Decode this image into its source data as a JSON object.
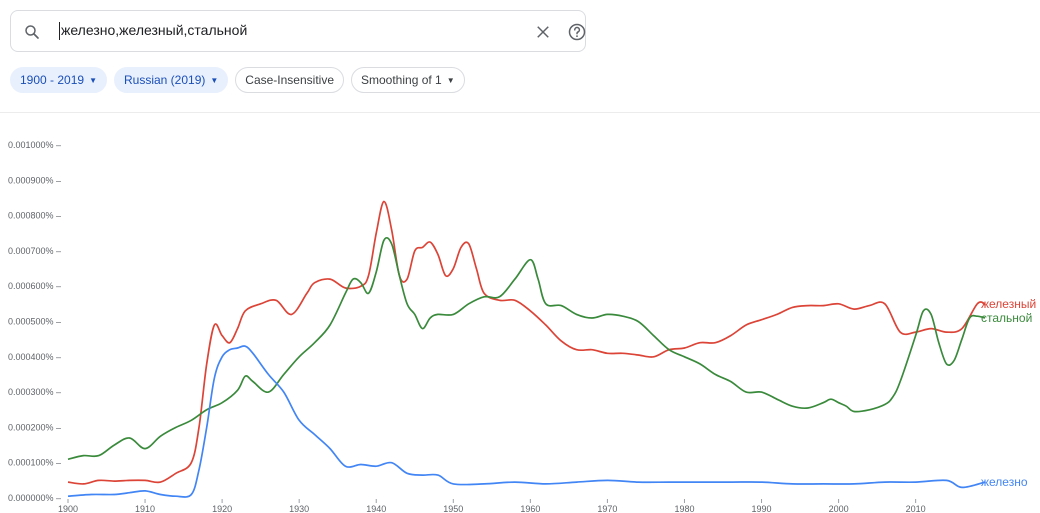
{
  "search": {
    "query": "железно,железный,стальной",
    "icons": {
      "search": "search-icon",
      "clear": "close-icon",
      "help": "help-icon"
    }
  },
  "filters": {
    "year_range": "1900 - 2019",
    "corpus": "Russian (2019)",
    "case": "Case-Insensitive",
    "smoothing": "Smoothing of 1"
  },
  "colors": {
    "железный": "#db4437",
    "стальной": "#3a8a3c",
    "железно": "#4285f4",
    "chip_selected_bg": "#e8f0fe",
    "chip_selected_text": "#1a4fb8"
  },
  "chart_data": {
    "type": "line",
    "title": "",
    "xlabel": "",
    "ylabel": "",
    "xlim": [
      1900,
      2019
    ],
    "ylim": [
      0,
      0.001
    ],
    "y_tick_labels": [
      "0.000000%",
      "0.000100%",
      "0.000200%",
      "0.000300%",
      "0.000400%",
      "0.000500%",
      "0.000600%",
      "0.000700%",
      "0.000800%",
      "0.000900%",
      "0.001000%"
    ],
    "y_tick_values": [
      0,
      0.0001,
      0.0002,
      0.0003,
      0.0004,
      0.0005,
      0.0006,
      0.0007,
      0.0008,
      0.0009,
      0.001
    ],
    "x_tick_labels": [
      "1900",
      "1910",
      "1920",
      "1930",
      "1940",
      "1950",
      "1960",
      "1970",
      "1980",
      "1990",
      "2000",
      "2010"
    ],
    "x_tick_values": [
      1900,
      1910,
      1920,
      1930,
      1940,
      1950,
      1960,
      1970,
      1980,
      1990,
      2000,
      2010
    ],
    "grid": false,
    "legend": "series labels at right end of lines",
    "series": [
      {
        "name": "железный",
        "color": "#db4437",
        "points": [
          [
            1900,
            4.5e-05
          ],
          [
            1902,
            4e-05
          ],
          [
            1904,
            5e-05
          ],
          [
            1906,
            4.8e-05
          ],
          [
            1908,
            5e-05
          ],
          [
            1910,
            5e-05
          ],
          [
            1912,
            4.5e-05
          ],
          [
            1914,
            7e-05
          ],
          [
            1916,
            0.0001
          ],
          [
            1917,
            0.0002
          ],
          [
            1918,
            0.00038
          ],
          [
            1919,
            0.00049
          ],
          [
            1920,
            0.00046
          ],
          [
            1921,
            0.00044
          ],
          [
            1922,
            0.00048
          ],
          [
            1923,
            0.00053
          ],
          [
            1925,
            0.00055
          ],
          [
            1927,
            0.00056
          ],
          [
            1929,
            0.00052
          ],
          [
            1931,
            0.00058
          ],
          [
            1932,
            0.00061
          ],
          [
            1934,
            0.00062
          ],
          [
            1936,
            0.000595
          ],
          [
            1938,
            0.0006
          ],
          [
            1939,
            0.00063
          ],
          [
            1940,
            0.00075
          ],
          [
            1941,
            0.00084
          ],
          [
            1942,
            0.00076
          ],
          [
            1943,
            0.00063
          ],
          [
            1944,
            0.00062
          ],
          [
            1945,
            0.0007
          ],
          [
            1946,
            0.00071
          ],
          [
            1947,
            0.000725
          ],
          [
            1948,
            0.00069
          ],
          [
            1949,
            0.00063
          ],
          [
            1950,
            0.00065
          ],
          [
            1951,
            0.00071
          ],
          [
            1952,
            0.00072
          ],
          [
            1953,
            0.00065
          ],
          [
            1954,
            0.00058
          ],
          [
            1956,
            0.00056
          ],
          [
            1958,
            0.00056
          ],
          [
            1960,
            0.00053
          ],
          [
            1962,
            0.00049
          ],
          [
            1964,
            0.000445
          ],
          [
            1966,
            0.00042
          ],
          [
            1968,
            0.00042
          ],
          [
            1970,
            0.00041
          ],
          [
            1972,
            0.00041
          ],
          [
            1974,
            0.000405
          ],
          [
            1976,
            0.0004
          ],
          [
            1978,
            0.00042
          ],
          [
            1980,
            0.000425
          ],
          [
            1982,
            0.00044
          ],
          [
            1984,
            0.00044
          ],
          [
            1986,
            0.00046
          ],
          [
            1988,
            0.00049
          ],
          [
            1990,
            0.000505
          ],
          [
            1992,
            0.00052
          ],
          [
            1994,
            0.00054
          ],
          [
            1996,
            0.000545
          ],
          [
            1998,
            0.000545
          ],
          [
            2000,
            0.00055
          ],
          [
            2002,
            0.000535
          ],
          [
            2004,
            0.000545
          ],
          [
            2006,
            0.00055
          ],
          [
            2008,
            0.00047
          ],
          [
            2010,
            0.00047
          ],
          [
            2012,
            0.00048
          ],
          [
            2014,
            0.00047
          ],
          [
            2016,
            0.00048
          ],
          [
            2018,
            0.00055
          ],
          [
            2019,
            0.00055
          ]
        ]
      },
      {
        "name": "стальной",
        "color": "#3a8a3c",
        "points": [
          [
            1900,
            0.00011
          ],
          [
            1902,
            0.00012
          ],
          [
            1904,
            0.00012
          ],
          [
            1906,
            0.00015
          ],
          [
            1908,
            0.00017
          ],
          [
            1910,
            0.00014
          ],
          [
            1912,
            0.000175
          ],
          [
            1914,
            0.0002
          ],
          [
            1916,
            0.00022
          ],
          [
            1918,
            0.00025
          ],
          [
            1920,
            0.00027
          ],
          [
            1922,
            0.000305
          ],
          [
            1923,
            0.000345
          ],
          [
            1924,
            0.00033
          ],
          [
            1926,
            0.0003
          ],
          [
            1928,
            0.00035
          ],
          [
            1930,
            0.0004
          ],
          [
            1932,
            0.00044
          ],
          [
            1934,
            0.00049
          ],
          [
            1936,
            0.00058
          ],
          [
            1937,
            0.00062
          ],
          [
            1938,
            0.00061
          ],
          [
            1939,
            0.00058
          ],
          [
            1940,
            0.00064
          ],
          [
            1941,
            0.00073
          ],
          [
            1942,
            0.00072
          ],
          [
            1943,
            0.00063
          ],
          [
            1944,
            0.00055
          ],
          [
            1945,
            0.00052
          ],
          [
            1946,
            0.00048
          ],
          [
            1947,
            0.00051
          ],
          [
            1948,
            0.00052
          ],
          [
            1950,
            0.00052
          ],
          [
            1952,
            0.00055
          ],
          [
            1954,
            0.00057
          ],
          [
            1956,
            0.00057
          ],
          [
            1958,
            0.00062
          ],
          [
            1960,
            0.000675
          ],
          [
            1961,
            0.00062
          ],
          [
            1962,
            0.00055
          ],
          [
            1964,
            0.000545
          ],
          [
            1966,
            0.00052
          ],
          [
            1968,
            0.00051
          ],
          [
            1970,
            0.00052
          ],
          [
            1972,
            0.000515
          ],
          [
            1974,
            0.0005
          ],
          [
            1976,
            0.00046
          ],
          [
            1978,
            0.00042
          ],
          [
            1980,
            0.0004
          ],
          [
            1982,
            0.00038
          ],
          [
            1984,
            0.00035
          ],
          [
            1986,
            0.00033
          ],
          [
            1988,
            0.0003
          ],
          [
            1990,
            0.0003
          ],
          [
            1992,
            0.00028
          ],
          [
            1994,
            0.00026
          ],
          [
            1996,
            0.000255
          ],
          [
            1998,
            0.00027
          ],
          [
            1999,
            0.00028
          ],
          [
            2000,
            0.00027
          ],
          [
            2001,
            0.00026
          ],
          [
            2002,
            0.000245
          ],
          [
            2004,
            0.00025
          ],
          [
            2006,
            0.000265
          ],
          [
            2007,
            0.000285
          ],
          [
            2008,
            0.00033
          ],
          [
            2010,
            0.00046
          ],
          [
            2011,
            0.00053
          ],
          [
            2012,
            0.00052
          ],
          [
            2013,
            0.00044
          ],
          [
            2014,
            0.00038
          ],
          [
            2015,
            0.00039
          ],
          [
            2016,
            0.00045
          ],
          [
            2017,
            0.00051
          ],
          [
            2018,
            0.000515
          ],
          [
            2019,
            0.00051
          ]
        ]
      },
      {
        "name": "железно",
        "color": "#4285f4",
        "points": [
          [
            1900,
            5e-06
          ],
          [
            1903,
            1e-05
          ],
          [
            1906,
            1e-05
          ],
          [
            1908,
            1.5e-05
          ],
          [
            1910,
            2e-05
          ],
          [
            1912,
            1e-05
          ],
          [
            1914,
            5e-06
          ],
          [
            1916,
            1e-05
          ],
          [
            1917,
            8e-05
          ],
          [
            1918,
            0.0002
          ],
          [
            1919,
            0.00034
          ],
          [
            1920,
            0.0004
          ],
          [
            1921,
            0.00042
          ],
          [
            1922,
            0.000425
          ],
          [
            1923,
            0.00043
          ],
          [
            1924,
            0.00041
          ],
          [
            1926,
            0.00035
          ],
          [
            1928,
            0.0003
          ],
          [
            1930,
            0.00022
          ],
          [
            1932,
            0.00018
          ],
          [
            1934,
            0.00014
          ],
          [
            1936,
            9e-05
          ],
          [
            1938,
            9.5e-05
          ],
          [
            1940,
            9e-05
          ],
          [
            1942,
            0.0001
          ],
          [
            1944,
            7e-05
          ],
          [
            1946,
            6.5e-05
          ],
          [
            1948,
            6.5e-05
          ],
          [
            1950,
            4e-05
          ],
          [
            1954,
            4e-05
          ],
          [
            1958,
            4.5e-05
          ],
          [
            1962,
            4e-05
          ],
          [
            1966,
            4.5e-05
          ],
          [
            1970,
            5e-05
          ],
          [
            1974,
            4.5e-05
          ],
          [
            1978,
            4.5e-05
          ],
          [
            1982,
            4.5e-05
          ],
          [
            1986,
            4.5e-05
          ],
          [
            1990,
            4.5e-05
          ],
          [
            1994,
            4e-05
          ],
          [
            1998,
            4e-05
          ],
          [
            2002,
            4e-05
          ],
          [
            2006,
            4.5e-05
          ],
          [
            2010,
            4.5e-05
          ],
          [
            2014,
            5e-05
          ],
          [
            2016,
            3e-05
          ],
          [
            2019,
            4.5e-05
          ]
        ]
      }
    ]
  }
}
